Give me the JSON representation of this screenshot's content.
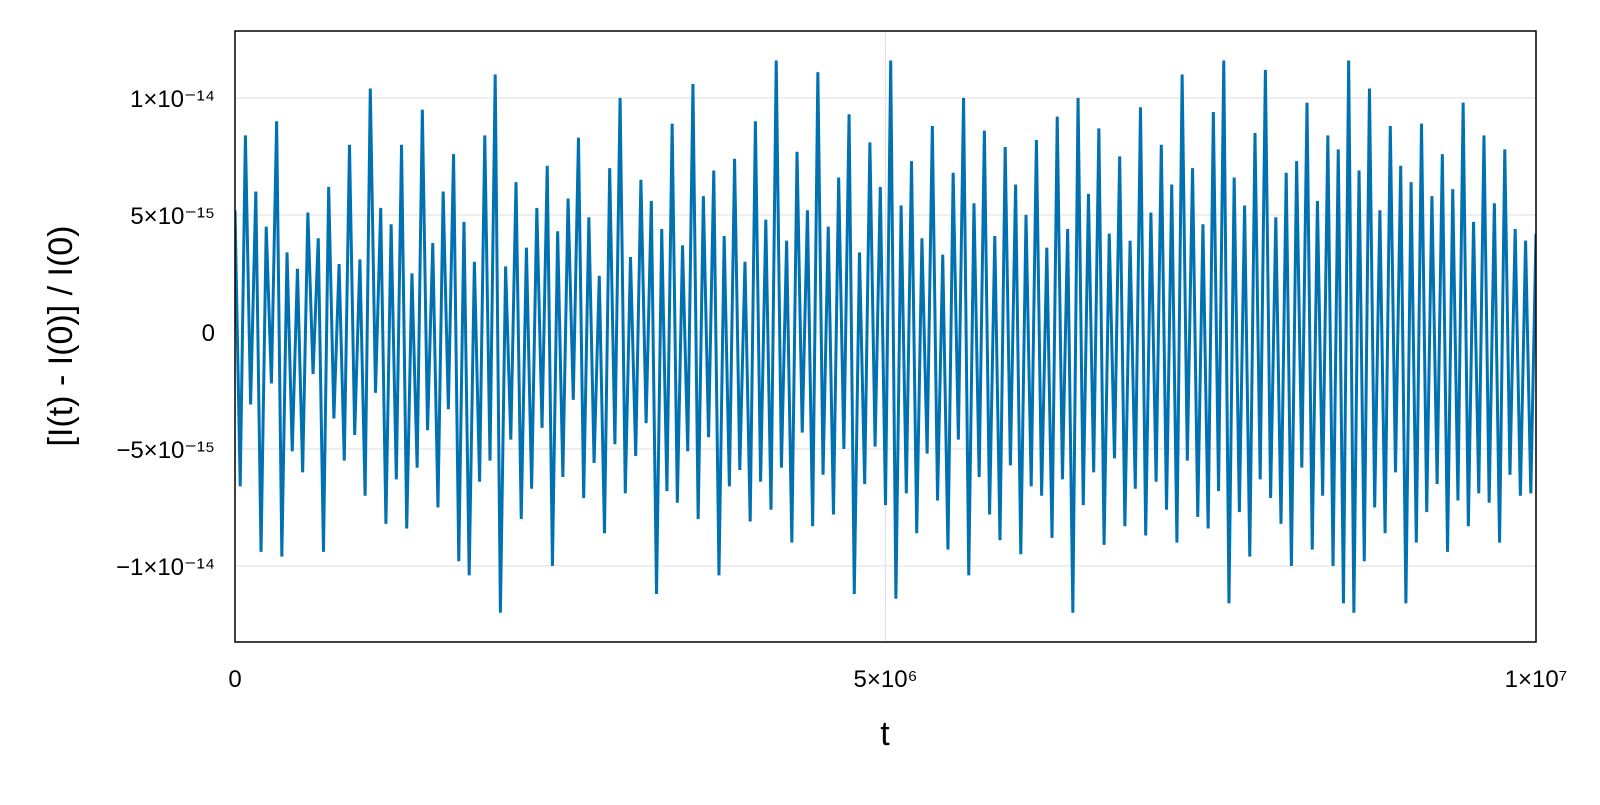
{
  "chart_data": {
    "type": "line",
    "xlabel": "t",
    "ylabel": "[I(t) - I(0)] / I(0)",
    "color": "#0072b2",
    "grid": true,
    "xlim": [
      0,
      10000000
    ],
    "xticks": [
      0,
      {
        "value": 5000000,
        "label": "5×10⁶"
      },
      {
        "value": 10000000,
        "label": "1×10⁷"
      }
    ],
    "ylim": [
      -1.325e-14,
      1.286e-14
    ],
    "yticks": [
      {
        "value": -1e-14,
        "label": "−1×10⁻¹⁴"
      },
      {
        "value": -5e-15,
        "label": "−5×10⁻¹⁵"
      },
      0,
      {
        "value": 5e-15,
        "label": "5×10⁻¹⁵"
      },
      {
        "value": 1e-14,
        "label": "1×10⁻¹⁴"
      }
    ],
    "x": [
      0,
      40000,
      80000,
      120000,
      160000,
      200000,
      240000,
      280000,
      320000,
      360000,
      400000,
      440000,
      480000,
      520000,
      560000,
      600000,
      640000,
      680000,
      720000,
      760000,
      800000,
      840000,
      880000,
      920000,
      960000,
      1000000,
      1040000,
      1080000,
      1120000,
      1160000,
      1200000,
      1240000,
      1280000,
      1320000,
      1360000,
      1400000,
      1440000,
      1480000,
      1520000,
      1560000,
      1600000,
      1640000,
      1680000,
      1720000,
      1760000,
      1800000,
      1840000,
      1880000,
      1920000,
      1960000,
      2000000,
      2040000,
      2080000,
      2120000,
      2160000,
      2200000,
      2240000,
      2280000,
      2320000,
      2360000,
      2400000,
      2440000,
      2480000,
      2520000,
      2560000,
      2600000,
      2640000,
      2680000,
      2720000,
      2760000,
      2800000,
      2840000,
      2880000,
      2920000,
      2960000,
      3000000,
      3040000,
      3080000,
      3120000,
      3160000,
      3200000,
      3240000,
      3280000,
      3320000,
      3360000,
      3400000,
      3440000,
      3480000,
      3520000,
      3560000,
      3600000,
      3640000,
      3680000,
      3720000,
      3760000,
      3800000,
      3840000,
      3880000,
      3920000,
      3960000,
      4000000,
      4040000,
      4080000,
      4120000,
      4160000,
      4200000,
      4240000,
      4280000,
      4320000,
      4360000,
      4400000,
      4440000,
      4480000,
      4520000,
      4560000,
      4600000,
      4640000,
      4680000,
      4720000,
      4760000,
      4800000,
      4840000,
      4880000,
      4920000,
      4960000,
      5000000,
      5040000,
      5080000,
      5120000,
      5160000,
      5200000,
      5240000,
      5280000,
      5320000,
      5360000,
      5400000,
      5440000,
      5480000,
      5520000,
      5560000,
      5600000,
      5640000,
      5680000,
      5720000,
      5760000,
      5800000,
      5840000,
      5880000,
      5920000,
      5960000,
      6000000,
      6040000,
      6080000,
      6120000,
      6160000,
      6200000,
      6240000,
      6280000,
      6320000,
      6360000,
      6400000,
      6440000,
      6480000,
      6520000,
      6560000,
      6600000,
      6640000,
      6680000,
      6720000,
      6760000,
      6800000,
      6840000,
      6880000,
      6920000,
      6960000,
      7000000,
      7040000,
      7080000,
      7120000,
      7160000,
      7200000,
      7240000,
      7280000,
      7320000,
      7360000,
      7400000,
      7440000,
      7480000,
      7520000,
      7560000,
      7600000,
      7640000,
      7680000,
      7720000,
      7760000,
      7800000,
      7840000,
      7880000,
      7920000,
      7960000,
      8000000,
      8040000,
      8080000,
      8120000,
      8160000,
      8200000,
      8240000,
      8280000,
      8320000,
      8360000,
      8400000,
      8440000,
      8480000,
      8520000,
      8560000,
      8600000,
      8640000,
      8680000,
      8720000,
      8760000,
      8800000,
      8840000,
      8880000,
      8920000,
      8960000,
      9000000,
      9040000,
      9080000,
      9120000,
      9160000,
      9200000,
      9240000,
      9280000,
      9320000,
      9360000,
      9400000,
      9440000,
      9480000,
      9520000,
      9560000,
      9600000,
      9640000,
      9680000,
      9720000,
      9760000,
      9800000,
      9840000,
      9880000,
      9920000,
      9960000,
      10000000
    ],
    "values": [
      5.2e-15,
      -6.6e-15,
      8.4e-15,
      -3.1e-15,
      6e-15,
      -9.4e-15,
      4.5e-15,
      -2.2e-15,
      9e-15,
      -9.6e-15,
      3.4e-15,
      -5.1e-15,
      2.7e-15,
      -6e-15,
      5.1e-15,
      -1.8e-15,
      4e-15,
      -9.4e-15,
      6.2e-15,
      -3.7e-15,
      2.9e-15,
      -5.5e-15,
      8e-15,
      -4.4e-15,
      3.1e-15,
      -7e-15,
      1.04e-14,
      -2.6e-15,
      5.3e-15,
      -8.2e-15,
      4.6e-15,
      -6.3e-15,
      8e-15,
      -8.4e-15,
      2.5e-15,
      -5.8e-15,
      9.5e-15,
      -4.2e-15,
      3.8e-15,
      -7.5e-15,
      6e-15,
      -3.3e-15,
      7.6e-15,
      -9.8e-15,
      4.7e-15,
      -1.04e-14,
      3e-15,
      -6.4e-15,
      8.4e-15,
      -5.5e-15,
      1.1e-14,
      -1.2e-14,
      2.8e-15,
      -4.6e-15,
      6.4e-15,
      -8e-15,
      3.6e-15,
      -6.7e-15,
      5.3e-15,
      -4.1e-15,
      7.1e-15,
      -1e-14,
      4.3e-15,
      -6.2e-15,
      5.7e-15,
      -2.9e-15,
      8.3e-15,
      -7.1e-15,
      4.9e-15,
      -5.6e-15,
      2.4e-15,
      -8.6e-15,
      7e-15,
      -4.8e-15,
      1e-14,
      -6.9e-15,
      3.2e-15,
      -5.3e-15,
      6.5e-15,
      -3.9e-15,
      5.6e-15,
      -1.12e-14,
      4.4e-15,
      -6.8e-15,
      8.9e-15,
      -7.3e-15,
      3.7e-15,
      -5.1e-15,
      1.06e-14,
      -8e-15,
      5.8e-15,
      -4.5e-15,
      6.9e-15,
      -1.04e-14,
      4.1e-15,
      -6.6e-15,
      7.4e-15,
      -5.9e-15,
      3e-15,
      -8.1e-15,
      9e-15,
      -6.4e-15,
      4.8e-15,
      -7.6e-15,
      1.16e-14,
      -5.8e-15,
      3.9e-15,
      -9e-15,
      7.7e-15,
      -4.3e-15,
      5.2e-15,
      -8.3e-15,
      1.11e-14,
      -6.1e-15,
      4.5e-15,
      -7.8e-15,
      6.6e-15,
      -5e-15,
      9.3e-15,
      -1.12e-14,
      3.4e-15,
      -6.5e-15,
      8.1e-15,
      -4.9e-15,
      6.2e-15,
      -7.4e-15,
      1.16e-14,
      -1.14e-14,
      5.4e-15,
      -6.9e-15,
      7.3e-15,
      -8.6e-15,
      4e-15,
      -5.2e-15,
      8.8e-15,
      -7.2e-15,
      3.3e-15,
      -9.3e-15,
      6.8e-15,
      -4.6e-15,
      1e-14,
      -1.04e-14,
      5.5e-15,
      -6.2e-15,
      8.6e-15,
      -7.8e-15,
      4.1e-15,
      -8.9e-15,
      7.9e-15,
      -5.7e-15,
      6.3e-15,
      -9.5e-15,
      5e-15,
      -6.6e-15,
      8.2e-15,
      -7e-15,
      3.6e-15,
      -8.8e-15,
      9.2e-15,
      -6.3e-15,
      4.4e-15,
      -1.2e-14,
      1e-14,
      -7.4e-15,
      5.9e-15,
      -6e-15,
      8.7e-15,
      -9.1e-15,
      4.2e-15,
      -5.4e-15,
      7.5e-15,
      -8.3e-15,
      3.9e-15,
      -6.7e-15,
      9.6e-15,
      -8.7e-15,
      5.1e-15,
      -6.4e-15,
      8e-15,
      -7.6e-15,
      6.3e-15,
      -9e-15,
      1.1e-14,
      -5.5e-15,
      7e-15,
      -7.9e-15,
      4.6e-15,
      -8.4e-15,
      9.4e-15,
      -6.8e-15,
      1.16e-14,
      -1.16e-14,
      6.6e-15,
      -7.7e-15,
      5.4e-15,
      -9.6e-15,
      8.5e-15,
      -6.3e-15,
      1.12e-14,
      -7.1e-15,
      4.9e-15,
      -8.2e-15,
      6.8e-15,
      -1e-14,
      7.3e-15,
      -5.8e-15,
      9.8e-15,
      -9.3e-15,
      5.6e-15,
      -7e-15,
      8.4e-15,
      -1e-14,
      7.8e-15,
      -1.16e-14,
      1.16e-14,
      -1.2e-14,
      6.9e-15,
      -9.8e-15,
      1.04e-14,
      -7.5e-15,
      5.2e-15,
      -8.6e-15,
      8.8e-15,
      -6e-15,
      7.1e-15,
      -1.16e-14,
      6.4e-15,
      -9e-15,
      8.9e-15,
      -7.7e-15,
      5.8e-15,
      -6.5e-15,
      7.6e-15,
      -9.4e-15,
      6.1e-15,
      -7.2e-15,
      9.8e-15,
      -8.3e-15,
      4.7e-15,
      -6.9e-15,
      8.4e-15,
      -7.3e-15,
      5.5e-15,
      -9e-15,
      7.8e-15,
      -6.1e-15,
      4.4e-15,
      -7e-15,
      3.9e-15,
      -6.9e-15,
      4.2e-15
    ]
  }
}
